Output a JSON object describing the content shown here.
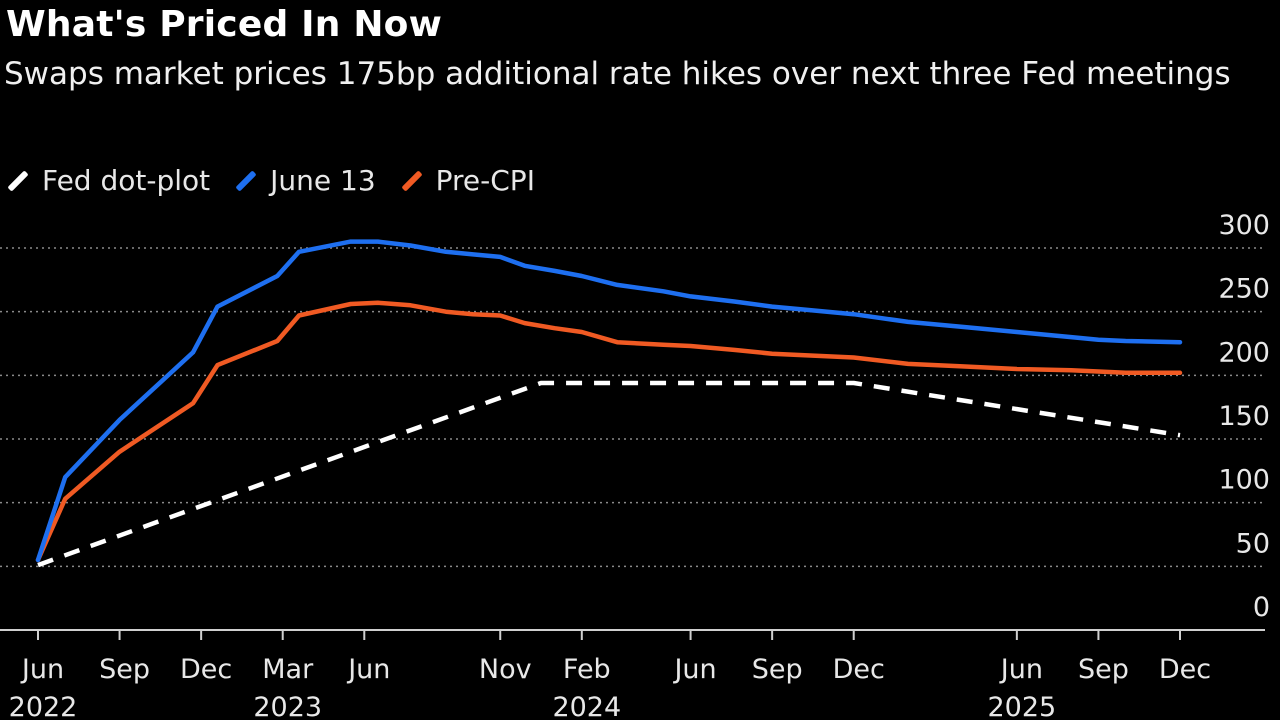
{
  "title": "What's Priced In Now",
  "subtitle": "Swaps market prices 175bp additional rate hikes over next three Fed meetings",
  "chart_data": {
    "type": "line",
    "title": "What's Priced In Now",
    "subtitle": "Swaps market prices 175bp additional rate hikes over next three Fed meetings",
    "xlabel": "",
    "ylabel": "",
    "xlim": [
      0,
      42
    ],
    "ylim": [
      0,
      300
    ],
    "yticks": [
      0,
      50,
      100,
      150,
      200,
      250,
      300
    ],
    "xticks": [
      {
        "pos": 0,
        "month": "Jun",
        "year": "2022"
      },
      {
        "pos": 3,
        "month": "Sep",
        "year": ""
      },
      {
        "pos": 6,
        "month": "Dec",
        "year": ""
      },
      {
        "pos": 9,
        "month": "Mar",
        "year": "2023"
      },
      {
        "pos": 12,
        "month": "Jun",
        "year": ""
      },
      {
        "pos": 17,
        "month": "Nov",
        "year": ""
      },
      {
        "pos": 20,
        "month": "Feb",
        "year": "2024"
      },
      {
        "pos": 24,
        "month": "Jun",
        "year": ""
      },
      {
        "pos": 27,
        "month": "Sep",
        "year": ""
      },
      {
        "pos": 30,
        "month": "Dec",
        "year": ""
      },
      {
        "pos": 36,
        "month": "Jun",
        "year": "2025"
      },
      {
        "pos": 39,
        "month": "Sep",
        "year": ""
      },
      {
        "pos": 42,
        "month": "Dec",
        "year": ""
      }
    ],
    "grid": true,
    "legend": "top-left",
    "series": [
      {
        "name": "Fed dot-plot",
        "color": "#ffffff",
        "style": "dashed",
        "x": [
          0,
          18.5,
          30,
          42
        ],
        "y": [
          51,
          194,
          194,
          153
        ]
      },
      {
        "name": "June 13",
        "color": "#1e6ff0",
        "style": "solid",
        "x": [
          0,
          1,
          3,
          5.7,
          6.6,
          8.8,
          9.6,
          11.5,
          12.5,
          13.7,
          15,
          16,
          17,
          17.9,
          19,
          20,
          21.3,
          23,
          24,
          25.6,
          27,
          28,
          30,
          32,
          34,
          36,
          38,
          39,
          40,
          42
        ],
        "y": [
          55,
          120,
          165,
          218,
          254,
          278,
          297,
          305,
          305,
          302,
          297,
          295,
          293,
          286,
          282,
          278,
          271,
          266,
          262,
          258,
          254,
          252,
          248,
          242,
          238,
          234,
          230,
          228,
          227,
          226
        ]
      },
      {
        "name": "Pre-CPI",
        "color": "#f05a23",
        "style": "solid",
        "x": [
          0,
          1,
          3,
          5.7,
          6.6,
          8.8,
          9.6,
          11.5,
          12.5,
          13.7,
          15,
          16,
          17,
          17.9,
          19,
          20,
          21.3,
          23,
          24,
          25.6,
          27,
          28,
          30,
          32,
          34,
          36,
          38,
          39,
          40,
          42
        ],
        "y": [
          55,
          103,
          140,
          178,
          208,
          227,
          247,
          256,
          257,
          255,
          250,
          248,
          247,
          241,
          237,
          234,
          226,
          224,
          223,
          220,
          217,
          216,
          214,
          209,
          207,
          205,
          204,
          203,
          202,
          202
        ]
      }
    ]
  }
}
